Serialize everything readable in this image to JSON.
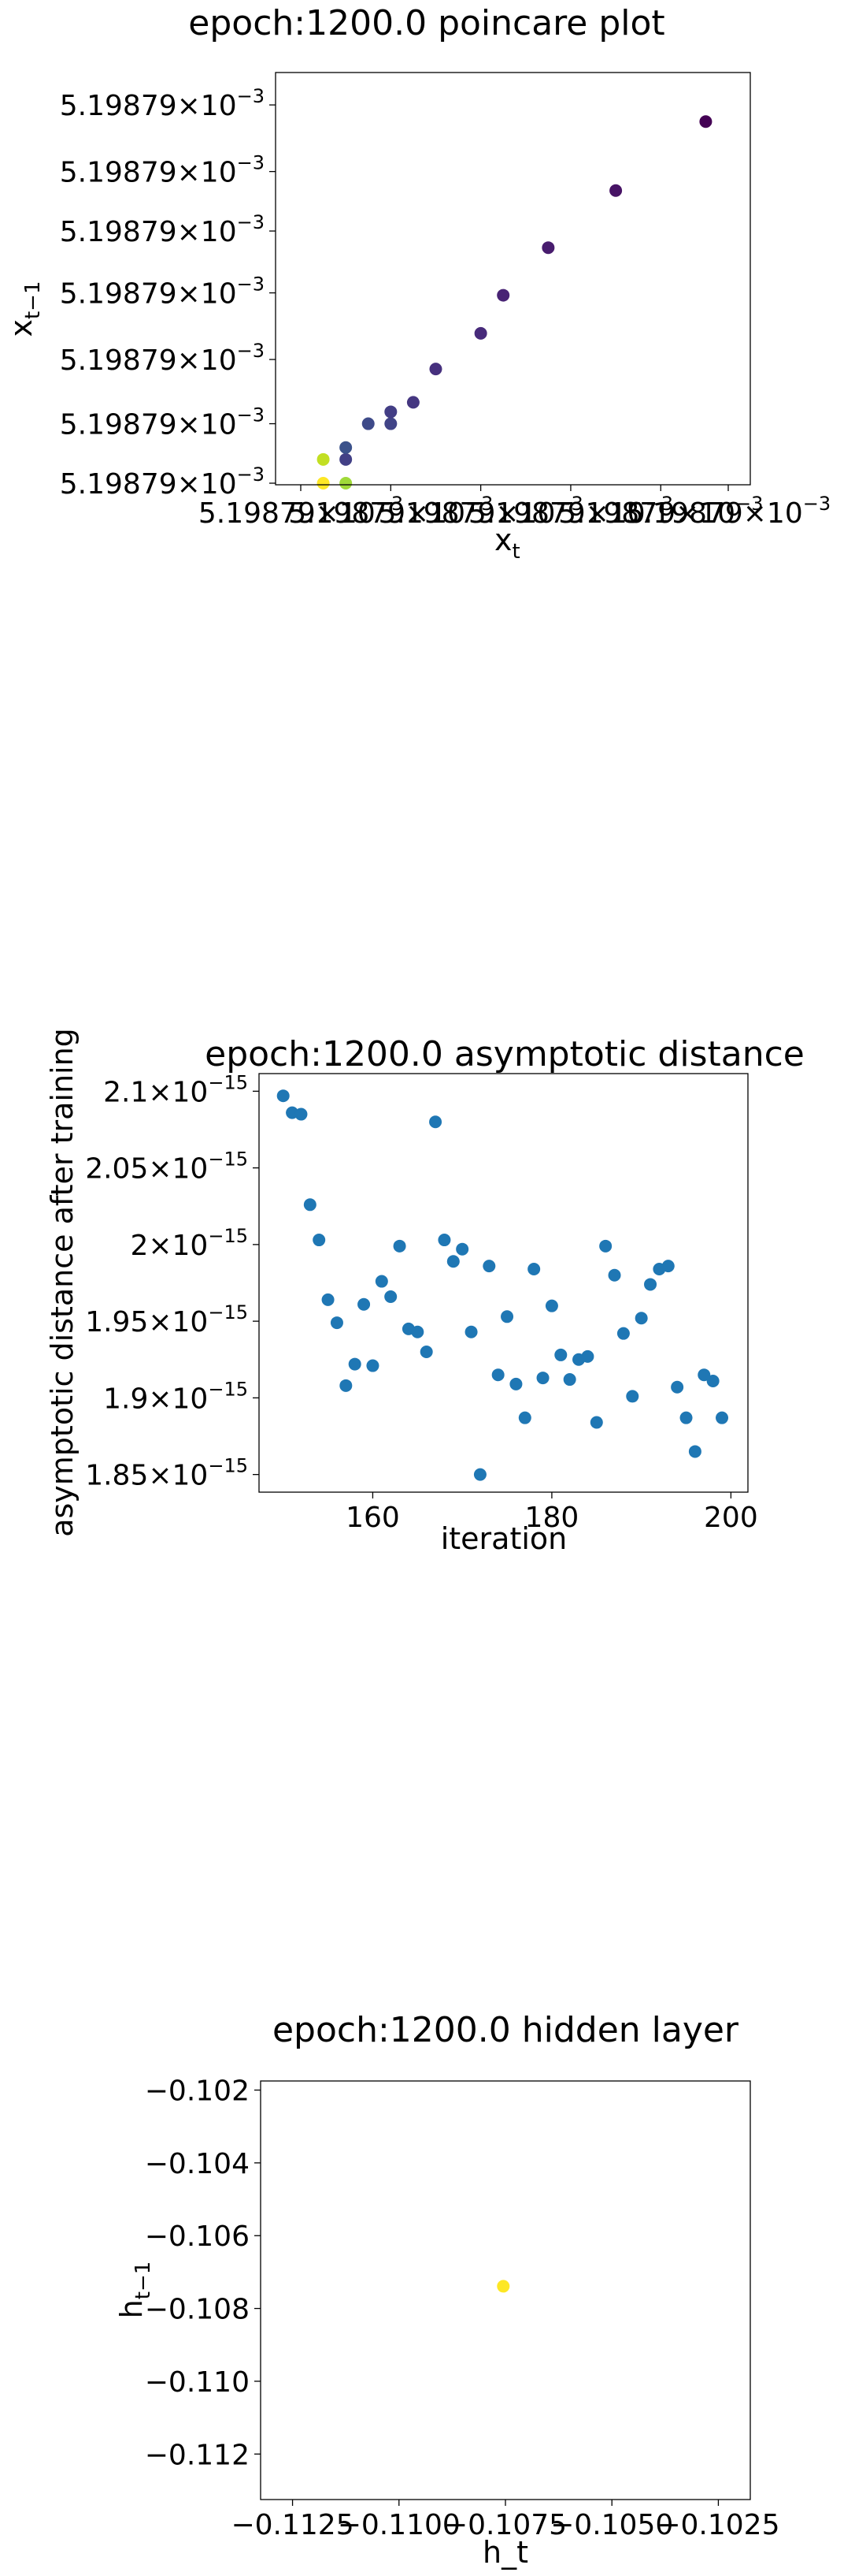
{
  "chart_data": [
    {
      "type": "scatter",
      "title": "epoch:1200.0 poincare plot",
      "xlabel_base": "x",
      "xlabel_sub": "t",
      "ylabel_base": "x",
      "ylabel_sub": "t−1",
      "xlim": [
        0,
        19
      ],
      "ylim": [
        0,
        16.5
      ],
      "x_tick_label_text": "5.19879×10",
      "x_tick_label_exp": "−3",
      "y_tick_label_text": "5.19879×10",
      "y_tick_label_exp": "−3",
      "x_ticks": [
        0,
        4,
        8,
        12,
        16,
        19
      ],
      "y_ticks": [
        0,
        2.5,
        5.2,
        8,
        10.6,
        13.1,
        15.9
      ],
      "colormap": "viridis",
      "points": [
        {
          "x": 1,
          "y": 0,
          "c": "#fde725"
        },
        {
          "x": 1,
          "y": 1,
          "c": "#c2df23"
        },
        {
          "x": 2,
          "y": 0,
          "c": "#a0da39"
        },
        {
          "x": 2,
          "y": 1,
          "c": "#424086"
        },
        {
          "x": 2,
          "y": 1.5,
          "c": "#3b528b"
        },
        {
          "x": 3,
          "y": 2.5,
          "c": "#3e4a89"
        },
        {
          "x": 4,
          "y": 2.5,
          "c": "#414487"
        },
        {
          "x": 4,
          "y": 3,
          "c": "#433e85"
        },
        {
          "x": 5,
          "y": 3.4,
          "c": "#453781"
        },
        {
          "x": 6,
          "y": 4.8,
          "c": "#46307e"
        },
        {
          "x": 8,
          "y": 6.3,
          "c": "#472a7a"
        },
        {
          "x": 9,
          "y": 7.9,
          "c": "#482374"
        },
        {
          "x": 11,
          "y": 9.9,
          "c": "#481c6e"
        },
        {
          "x": 14,
          "y": 12.3,
          "c": "#471365"
        },
        {
          "x": 18,
          "y": 15.2,
          "c": "#440154"
        }
      ]
    },
    {
      "type": "scatter",
      "title": "epoch:1200.0 asymptotic distance",
      "xlabel": "iteration",
      "ylabel": "asymptotic distance after training",
      "xlim": [
        147.3,
        201.9
      ],
      "ylim": [
        1.8385,
        2.1115
      ],
      "x_ticks": [
        160,
        180,
        200
      ],
      "y_ticks": [
        1.85,
        1.9,
        1.95,
        2.0,
        2.05,
        2.1
      ],
      "y_tick_label_mantissas": [
        "1.85",
        "1.9",
        "1.95",
        "2",
        "2.05",
        "2.1"
      ],
      "y_tick_label_mid": "×10",
      "y_tick_label_exp": "−15",
      "color": "#1f77b4",
      "points": [
        {
          "x": 150,
          "y": 2.097
        },
        {
          "x": 151,
          "y": 2.086
        },
        {
          "x": 152,
          "y": 2.085
        },
        {
          "x": 153,
          "y": 2.026
        },
        {
          "x": 154,
          "y": 2.003
        },
        {
          "x": 155,
          "y": 1.964
        },
        {
          "x": 156,
          "y": 1.949
        },
        {
          "x": 157,
          "y": 1.908
        },
        {
          "x": 158,
          "y": 1.922
        },
        {
          "x": 159,
          "y": 1.961
        },
        {
          "x": 160,
          "y": 1.921
        },
        {
          "x": 161,
          "y": 1.976
        },
        {
          "x": 162,
          "y": 1.966
        },
        {
          "x": 163,
          "y": 1.999
        },
        {
          "x": 164,
          "y": 1.945
        },
        {
          "x": 165,
          "y": 1.943
        },
        {
          "x": 166,
          "y": 1.93
        },
        {
          "x": 167,
          "y": 2.08
        },
        {
          "x": 168,
          "y": 2.003
        },
        {
          "x": 169,
          "y": 1.989
        },
        {
          "x": 170,
          "y": 1.997
        },
        {
          "x": 171,
          "y": 1.943
        },
        {
          "x": 172,
          "y": 1.85
        },
        {
          "x": 173,
          "y": 1.986
        },
        {
          "x": 174,
          "y": 1.915
        },
        {
          "x": 175,
          "y": 1.953
        },
        {
          "x": 176,
          "y": 1.909
        },
        {
          "x": 177,
          "y": 1.887
        },
        {
          "x": 178,
          "y": 1.984
        },
        {
          "x": 179,
          "y": 1.913
        },
        {
          "x": 180,
          "y": 1.96
        },
        {
          "x": 181,
          "y": 1.928
        },
        {
          "x": 182,
          "y": 1.912
        },
        {
          "x": 183,
          "y": 1.925
        },
        {
          "x": 184,
          "y": 1.927
        },
        {
          "x": 185,
          "y": 1.884
        },
        {
          "x": 186,
          "y": 1.999
        },
        {
          "x": 187,
          "y": 1.98
        },
        {
          "x": 188,
          "y": 1.942
        },
        {
          "x": 189,
          "y": 1.901
        },
        {
          "x": 190,
          "y": 1.952
        },
        {
          "x": 191,
          "y": 1.974
        },
        {
          "x": 192,
          "y": 1.984
        },
        {
          "x": 193,
          "y": 1.986
        },
        {
          "x": 194,
          "y": 1.907
        },
        {
          "x": 195,
          "y": 1.887
        },
        {
          "x": 196,
          "y": 1.865
        },
        {
          "x": 197,
          "y": 1.915
        },
        {
          "x": 198,
          "y": 1.911
        },
        {
          "x": 199,
          "y": 1.887
        }
      ]
    },
    {
      "type": "scatter",
      "title": "epoch:1200.0 hidden layer",
      "xlabel": "h_t",
      "ylabel_base": "h",
      "ylabel_sub": "t−1",
      "xlim": [
        -0.11325,
        -0.10175
      ],
      "ylim": [
        -0.11325,
        -0.10175
      ],
      "x_ticks": [
        -0.1125,
        -0.11,
        -0.1075,
        -0.105,
        -0.1025
      ],
      "x_tick_labels": [
        "−0.1125",
        "−0.1100",
        "−0.1075",
        "−0.1050",
        "−0.1025"
      ],
      "y_ticks": [
        -0.102,
        -0.104,
        -0.106,
        -0.108,
        -0.11,
        -0.112
      ],
      "y_tick_labels": [
        "−0.102",
        "−0.104",
        "−0.106",
        "−0.108",
        "−0.110",
        "−0.112"
      ],
      "points": [
        {
          "x": -0.10755,
          "y": -0.10739,
          "c": "#fde725"
        }
      ]
    }
  ]
}
